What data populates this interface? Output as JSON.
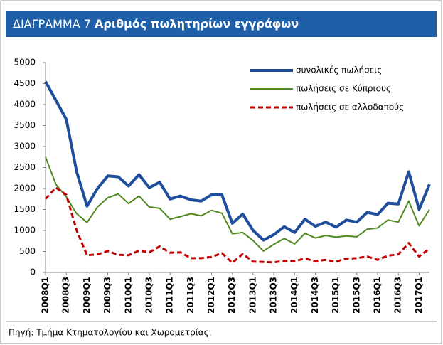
{
  "chart_data": {
    "type": "line",
    "title_prefix": "ΔΙΑΓΡΑΜΜΑ 7",
    "title": "Αριθμός πωλητηρίων εγγράφων",
    "source": "Πηγή: Τμήμα Κτηματολογίου και Χωρομετρίας.",
    "categories": [
      "2008Q1",
      null,
      "2008Q3",
      null,
      "2009Q1",
      null,
      "2009Q3",
      null,
      "2010Q1",
      null,
      "2010Q3",
      null,
      "2011Q1",
      null,
      "2011Q3",
      null,
      "2012Q1",
      null,
      "2012Q3",
      null,
      "2013Q1",
      null,
      "2013Q3",
      null,
      "2014Q1",
      null,
      "2014Q3",
      null,
      "2015Q1",
      null,
      "2015Q3",
      null,
      "2016Q1",
      null,
      "2016Q3",
      null,
      "2017Q1",
      null
    ],
    "series": [
      {
        "name": "συνολικές πωλήσεις",
        "color": "#1f4e9c",
        "width": 4,
        "dashed": false,
        "values": [
          4550,
          4100,
          3650,
          2400,
          1580,
          2000,
          2300,
          2280,
          2060,
          2330,
          2020,
          2150,
          1750,
          1820,
          1730,
          1700,
          1850,
          1850,
          1170,
          1390,
          1000,
          770,
          900,
          1090,
          950,
          1270,
          1100,
          1200,
          1080,
          1250,
          1200,
          1430,
          1380,
          1650,
          1630,
          2400,
          1500,
          2100
        ]
      },
      {
        "name": "πωλήσεις σε Κύπριους",
        "color": "#4e8a1e",
        "width": 2,
        "dashed": false,
        "values": [
          2750,
          2100,
          1800,
          1400,
          1190,
          1560,
          1780,
          1870,
          1640,
          1820,
          1560,
          1530,
          1270,
          1330,
          1400,
          1350,
          1480,
          1410,
          920,
          950,
          760,
          510,
          670,
          810,
          680,
          930,
          820,
          880,
          840,
          870,
          850,
          1030,
          1060,
          1250,
          1200,
          1700,
          1110,
          1500
        ]
      },
      {
        "name": "πωλήσεις σε αλλοδαπούς",
        "color": "#c00000",
        "width": 3,
        "dashed": true,
        "values": [
          1750,
          2020,
          1850,
          1000,
          410,
          430,
          510,
          420,
          410,
          520,
          480,
          620,
          470,
          480,
          340,
          340,
          370,
          460,
          230,
          440,
          260,
          250,
          240,
          280,
          270,
          330,
          270,
          300,
          260,
          330,
          340,
          380,
          300,
          400,
          430,
          700,
          380,
          570
        ]
      }
    ],
    "ylim": [
      0,
      5000
    ],
    "yticks": [
      0,
      500,
      1000,
      1500,
      2000,
      2500,
      3000,
      3500,
      4000,
      4500,
      5000
    ],
    "grid": false,
    "legend": "top-right"
  }
}
